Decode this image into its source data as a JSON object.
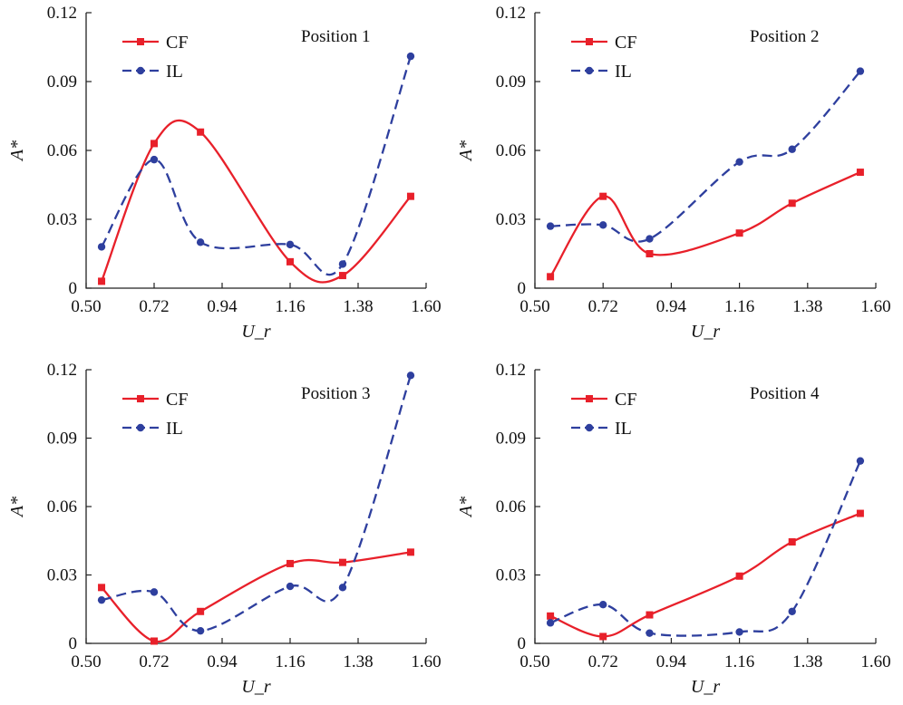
{
  "chart_data": [
    {
      "type": "line",
      "title": "Position 1",
      "xlabel": "U_r",
      "ylabel": "A*",
      "xlim": [
        0.5,
        1.6
      ],
      "ylim": [
        0,
        0.12
      ],
      "xticks": [
        "0.50",
        "0.72",
        "0.94",
        "1.16",
        "1.38",
        "1.60"
      ],
      "yticks": [
        "0",
        "0.03",
        "0.06",
        "0.09",
        "0.12"
      ],
      "legend_position": "top-left",
      "series": [
        {
          "name": "CF",
          "color": "#e8202a",
          "style": "solid",
          "marker": "square",
          "x": [
            0.55,
            0.72,
            0.87,
            1.16,
            1.33,
            1.55
          ],
          "y": [
            0.003,
            0.063,
            0.068,
            0.0115,
            0.0055,
            0.04
          ]
        },
        {
          "name": "IL",
          "color": "#2e3f9e",
          "style": "dashed",
          "marker": "circle",
          "x": [
            0.55,
            0.72,
            0.87,
            1.16,
            1.33,
            1.55
          ],
          "y": [
            0.018,
            0.056,
            0.02,
            0.019,
            0.0105,
            0.101
          ]
        }
      ]
    },
    {
      "type": "line",
      "title": "Position 2",
      "xlabel": "U_r",
      "ylabel": "A*",
      "xlim": [
        0.5,
        1.6
      ],
      "ylim": [
        0,
        0.12
      ],
      "xticks": [
        "0.50",
        "0.72",
        "0.94",
        "1.16",
        "1.38",
        "1.60"
      ],
      "yticks": [
        "0",
        "0.03",
        "0.06",
        "0.09",
        "0.12"
      ],
      "legend_position": "top-left",
      "series": [
        {
          "name": "CF",
          "color": "#e8202a",
          "style": "solid",
          "marker": "square",
          "x": [
            0.55,
            0.72,
            0.87,
            1.16,
            1.33,
            1.55
          ],
          "y": [
            0.005,
            0.04,
            0.015,
            0.024,
            0.037,
            0.0505
          ]
        },
        {
          "name": "IL",
          "color": "#2e3f9e",
          "style": "dashed",
          "marker": "circle",
          "x": [
            0.55,
            0.72,
            0.87,
            1.16,
            1.33,
            1.55
          ],
          "y": [
            0.027,
            0.0275,
            0.0215,
            0.055,
            0.0605,
            0.0945
          ]
        }
      ]
    },
    {
      "type": "line",
      "title": "Position 3",
      "xlabel": "U_r",
      "ylabel": "A*",
      "xlim": [
        0.5,
        1.6
      ],
      "ylim": [
        0,
        0.12
      ],
      "xticks": [
        "0.50",
        "0.72",
        "0.94",
        "1.16",
        "1.38",
        "1.60"
      ],
      "yticks": [
        "0",
        "0.03",
        "0.06",
        "0.09",
        "0.12"
      ],
      "legend_position": "top-left",
      "series": [
        {
          "name": "CF",
          "color": "#e8202a",
          "style": "solid",
          "marker": "square",
          "x": [
            0.55,
            0.72,
            0.87,
            1.16,
            1.33,
            1.55
          ],
          "y": [
            0.0245,
            0.001,
            0.014,
            0.035,
            0.0355,
            0.04
          ]
        },
        {
          "name": "IL",
          "color": "#2e3f9e",
          "style": "dashed",
          "marker": "circle",
          "x": [
            0.55,
            0.72,
            0.87,
            1.16,
            1.33,
            1.55
          ],
          "y": [
            0.019,
            0.0225,
            0.0055,
            0.025,
            0.0245,
            0.1175
          ]
        }
      ]
    },
    {
      "type": "line",
      "title": "Position 4",
      "xlabel": "U_r",
      "ylabel": "A*",
      "xlim": [
        0.5,
        1.6
      ],
      "ylim": [
        0,
        0.12
      ],
      "xticks": [
        "0.50",
        "0.72",
        "0.94",
        "1.16",
        "1.38",
        "1.60"
      ],
      "yticks": [
        "0",
        "0.03",
        "0.06",
        "0.09",
        "0.12"
      ],
      "legend_position": "top-left",
      "series": [
        {
          "name": "CF",
          "color": "#e8202a",
          "style": "solid",
          "marker": "square",
          "x": [
            0.55,
            0.72,
            0.87,
            1.16,
            1.33,
            1.55
          ],
          "y": [
            0.012,
            0.003,
            0.0125,
            0.0295,
            0.0445,
            0.057
          ]
        },
        {
          "name": "IL",
          "color": "#2e3f9e",
          "style": "dashed",
          "marker": "circle",
          "x": [
            0.55,
            0.72,
            0.87,
            1.16,
            1.33,
            1.55
          ],
          "y": [
            0.009,
            0.017,
            0.0045,
            0.005,
            0.014,
            0.08
          ]
        }
      ]
    }
  ]
}
